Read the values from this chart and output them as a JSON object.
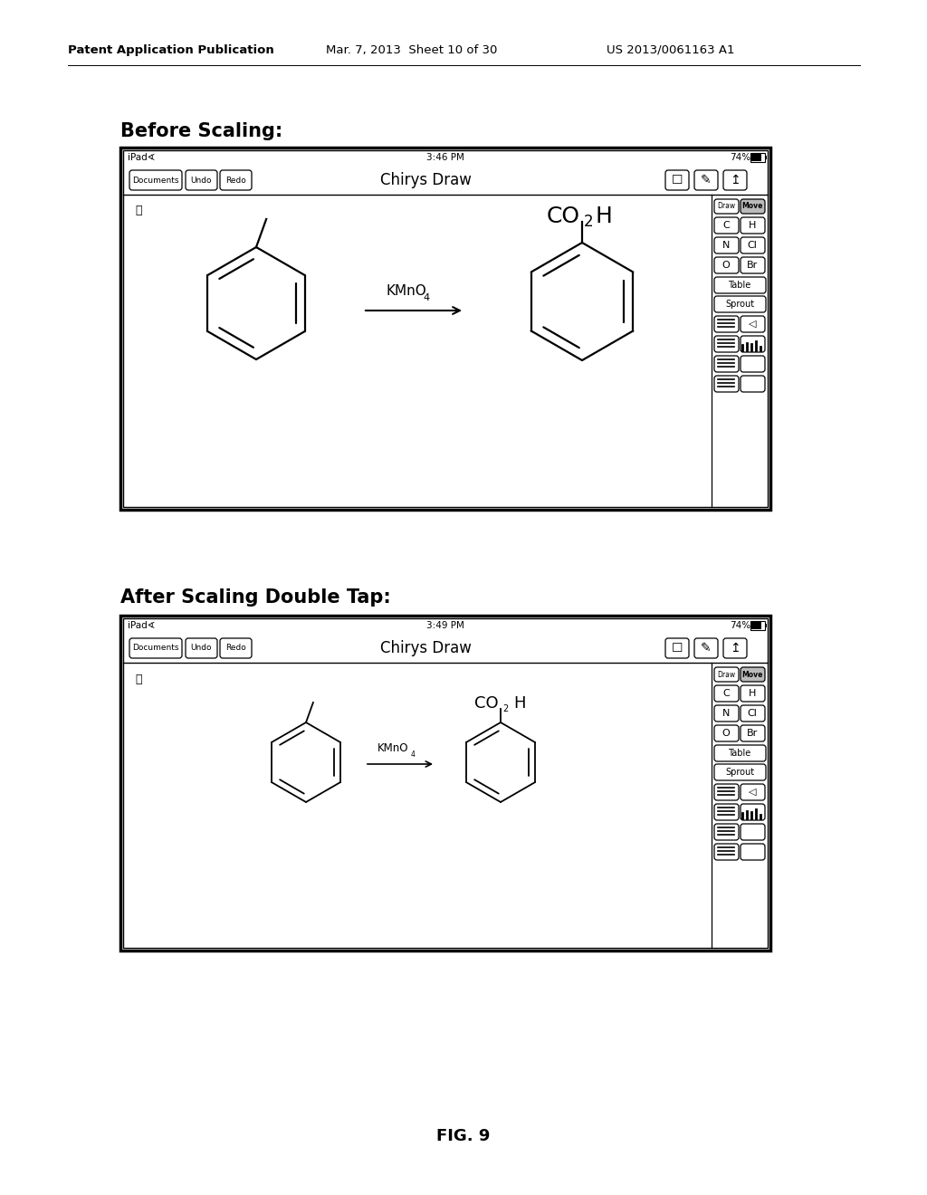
{
  "header_left": "Patent Application Publication",
  "header_mid": "Mar. 7, 2013  Sheet 10 of 30",
  "header_right": "US 2013/0061163 A1",
  "label1": "Before Scaling:",
  "label2": "After Scaling Double Tap:",
  "fig_label": "FIG. 9",
  "ipad1_time": "3:46 PM",
  "ipad2_time": "3:49 PM",
  "battery_pct": "74%",
  "app_title": "Chirys Draw",
  "reagent": "KMnO",
  "reagent_sub": "4",
  "product_co2h_main": "CO",
  "product_co2h_sub": "2",
  "product_co2h_h": "H"
}
